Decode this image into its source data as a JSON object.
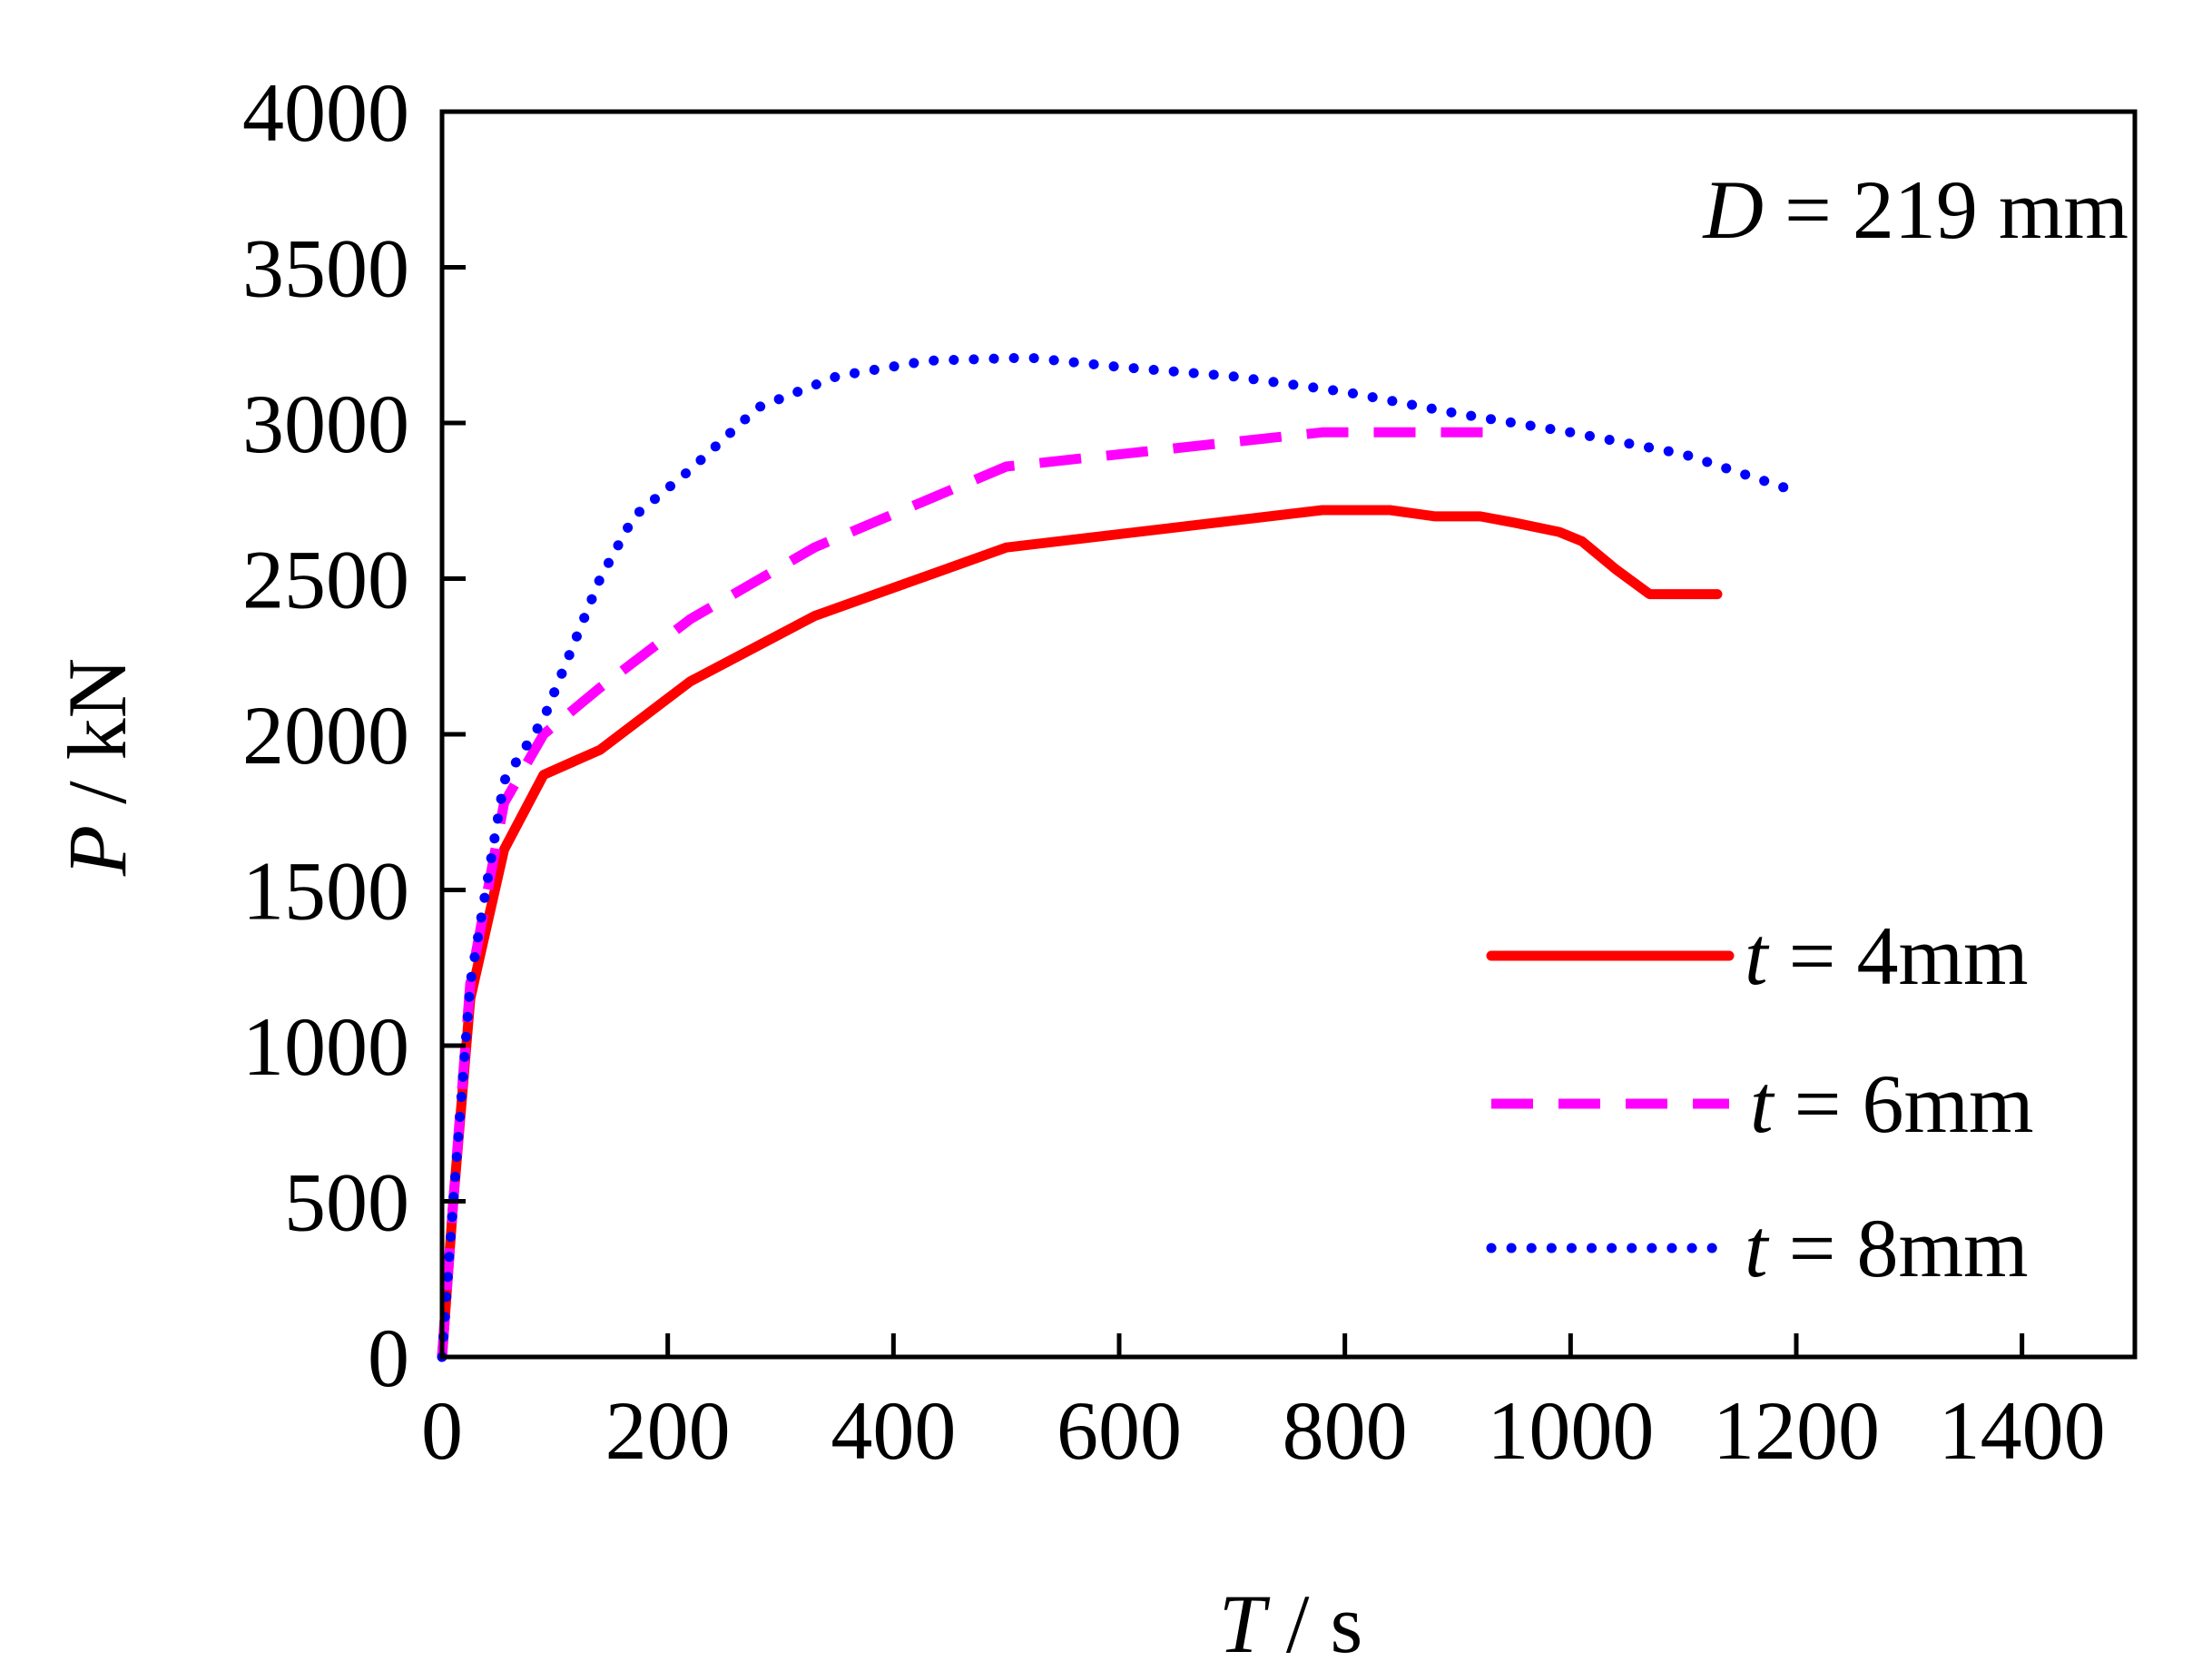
{
  "chart_data": {
    "type": "line",
    "xlabel": {
      "var": "T",
      "unit": " / s"
    },
    "ylabel": {
      "var": "P",
      "unit": " / kN"
    },
    "xlim": [
      0,
      1500
    ],
    "ylim": [
      0,
      4000
    ],
    "xticks": [
      0,
      200,
      400,
      600,
      800,
      1000,
      1200,
      1400
    ],
    "yticks": [
      0,
      500,
      1000,
      1500,
      2000,
      2500,
      3000,
      3500,
      4000
    ],
    "xtick_labels": [
      "0",
      "200",
      "400",
      "600",
      "800",
      "1000",
      "1200",
      "1400"
    ],
    "ytick_labels": [
      "0",
      "500",
      "1000",
      "1500",
      "2000",
      "2500",
      "3000",
      "3500",
      "4000"
    ],
    "grid": false,
    "legend_position": "lower-right",
    "annotation": {
      "var": "D",
      "text": " = 219 mm"
    },
    "series": [
      {
        "name": "t = 4mm",
        "legend_var": "t",
        "legend_text": " = 4mm",
        "color": "#ff0000",
        "style": "solid",
        "x": [
          0,
          10,
          25,
          55,
          90,
          140,
          220,
          330,
          500,
          780,
          840,
          880,
          920,
          950,
          990,
          1010,
          1040,
          1070,
          1130
        ],
        "y": [
          0,
          500,
          1150,
          1630,
          1870,
          1950,
          2170,
          2380,
          2600,
          2720,
          2720,
          2700,
          2700,
          2680,
          2650,
          2620,
          2530,
          2450,
          2450
        ]
      },
      {
        "name": "t = 6mm",
        "legend_var": "t",
        "legend_text": " = 6mm",
        "color": "#ff00ff",
        "style": "dashed",
        "x": [
          0,
          10,
          25,
          55,
          90,
          140,
          220,
          330,
          500,
          780,
          900,
          940
        ],
        "y": [
          0,
          500,
          1200,
          1780,
          2000,
          2150,
          2370,
          2600,
          2860,
          2970,
          2970,
          2970
        ]
      },
      {
        "name": "t = 8mm",
        "legend_var": "t",
        "legend_text": " = 8mm",
        "color": "#0000ff",
        "style": "dotted",
        "x": [
          0,
          10,
          25,
          55,
          90,
          140,
          170,
          220,
          280,
          350,
          430,
          520,
          600,
          700,
          800,
          900,
          1000,
          1100,
          1200
        ],
        "y": [
          0,
          500,
          1200,
          1850,
          2050,
          2500,
          2700,
          2850,
          3050,
          3150,
          3200,
          3210,
          3180,
          3150,
          3100,
          3030,
          2970,
          2900,
          2780
        ]
      }
    ]
  }
}
